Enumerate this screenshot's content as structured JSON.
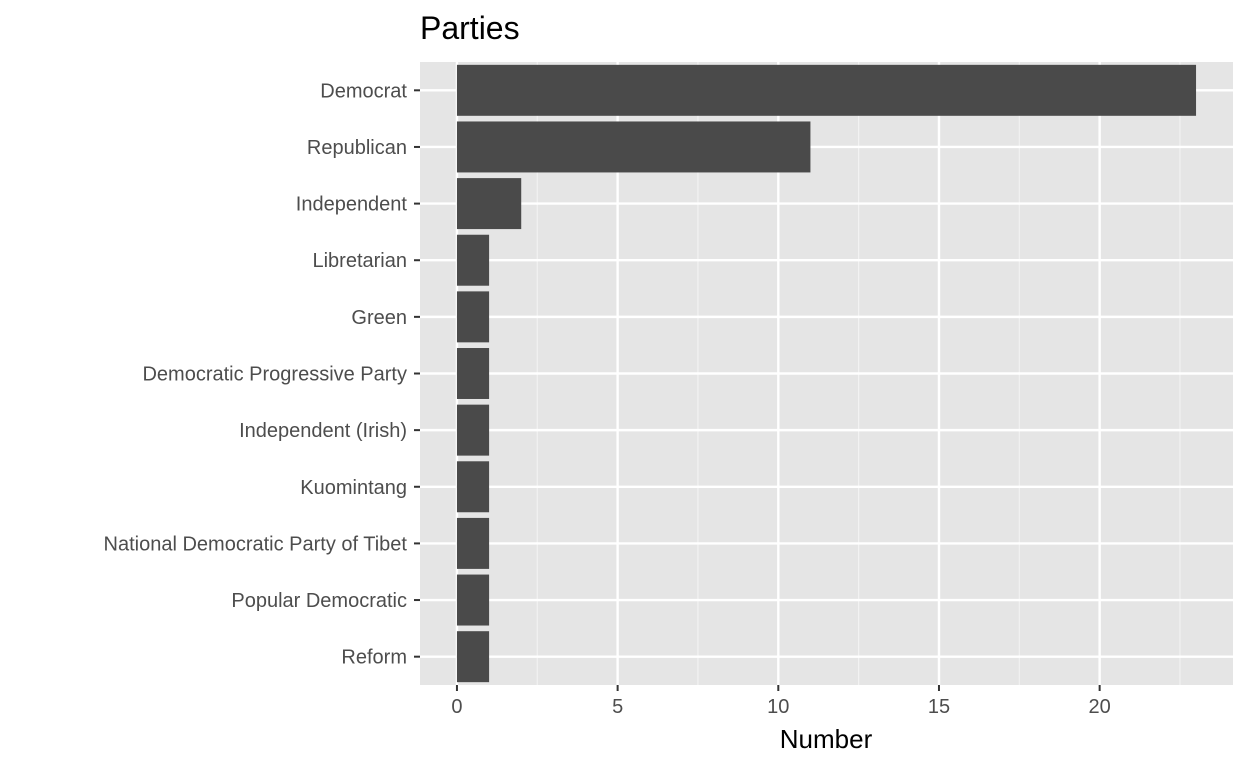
{
  "chart_data": {
    "type": "bar",
    "orientation": "horizontal",
    "title": "Parties",
    "xlabel": "Number",
    "ylabel": "",
    "categories": [
      "Democrat",
      "Republican",
      "Independent",
      "Libretarian",
      "Green",
      "Democratic Progressive Party",
      "Independent (Irish)",
      "Kuomintang",
      "National Democratic Party of Tibet",
      "Popular Democratic",
      "Reform"
    ],
    "values": [
      23,
      11,
      2,
      1,
      1,
      1,
      1,
      1,
      1,
      1,
      1
    ],
    "xlim": [
      -1.15,
      24.15
    ],
    "x_ticks": [
      0,
      5,
      10,
      15,
      20
    ],
    "x_tick_labels": [
      "0",
      "5",
      "10",
      "15",
      "20"
    ],
    "grid": true,
    "legend": "none",
    "colors": {
      "bar": "#4a4a4a",
      "panel": "#e5e5e5",
      "grid_major": "#ffffff",
      "grid_minor": "#f2f2f2",
      "tick": "#333333",
      "tick_label": "#4d4d4d"
    }
  }
}
